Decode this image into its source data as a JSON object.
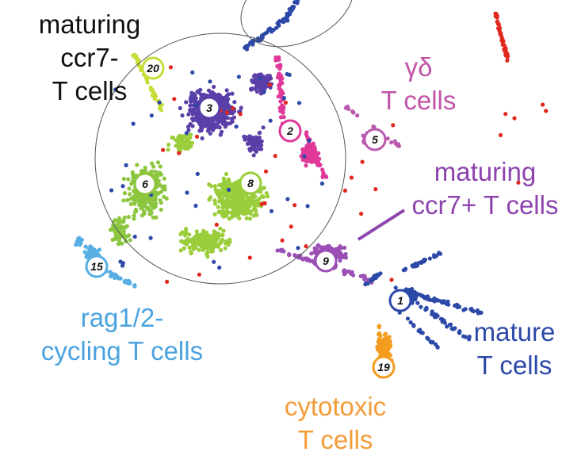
{
  "chart_data": {
    "type": "scatter",
    "title": "",
    "xlabel": "",
    "ylabel": "",
    "grid": false,
    "groups": [
      {
        "id": "maturing_ccr7_minus",
        "lines": [
          "maturing",
          "ccr7-",
          "T cells"
        ],
        "color": "#111111"
      },
      {
        "id": "gamma_delta",
        "lines": [
          "γδ",
          "T cells"
        ],
        "color": "#c154a8"
      },
      {
        "id": "maturing_ccr7_plus",
        "lines": [
          "maturing",
          "ccr7+ T cells"
        ],
        "color": "#8e44ad"
      },
      {
        "id": "rag_cycling",
        "lines": [
          "rag1/2-",
          "cycling T cells"
        ],
        "color": "#4aa3df"
      },
      {
        "id": "mature",
        "lines": [
          "mature",
          "T cells"
        ],
        "color": "#2c49a8"
      },
      {
        "id": "cytotoxic",
        "lines": [
          "cytotoxic",
          "T cells"
        ],
        "color": "#f39c3a"
      }
    ],
    "clusters": [
      {
        "label": "1",
        "color": "#2c49a8"
      },
      {
        "label": "2",
        "color": "#e0399a"
      },
      {
        "label": "3",
        "color": "#5b3fa8"
      },
      {
        "label": "5",
        "color": "#b85bb0"
      },
      {
        "label": "6",
        "color": "#8cc63f"
      },
      {
        "label": "8",
        "color": "#9acd3a"
      },
      {
        "label": "9",
        "color": "#9b4fb5"
      },
      {
        "label": "15",
        "color": "#56aee3"
      },
      {
        "label": "19",
        "color": "#f39c1f"
      },
      {
        "label": "20",
        "color": "#c8dc3a"
      }
    ],
    "extra_colors": {
      "red": "#e0281f",
      "circle": "#555555"
    }
  }
}
